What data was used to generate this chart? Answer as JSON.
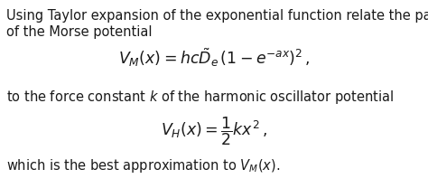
{
  "background_color": "#ffffff",
  "text_color": "#1a1a1a",
  "line1": "Using Taylor expansion of the exponential function relate the parameters",
  "line2": "of the Morse potential",
  "eq1": "$V_M(x) = hc\\tilde{D}_e\\,(1 - e^{-ax})^2\\,,$",
  "line3": "to the force constant $k$ of the harmonic oscillator potential",
  "eq2": "$V_H(x) = \\dfrac{1}{2}kx^2\\,,$",
  "line4": "which is the best approximation to $V_M(x)$.",
  "fontsize_text": 10.5,
  "fontsize_eq": 12.5,
  "fig_width": 4.74,
  "fig_height": 2.08,
  "dpi": 100
}
